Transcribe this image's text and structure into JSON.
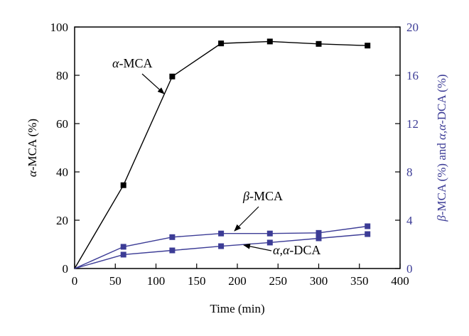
{
  "chart_data": {
    "type": "line",
    "xlabel": "Time (min)",
    "x_ticks": [
      "0",
      "50",
      "100",
      "150",
      "200",
      "250",
      "300",
      "350",
      "400"
    ],
    "xlim": [
      0,
      400
    ],
    "y_left": {
      "label_italic": "α",
      "label_rest": "-MCA (%)",
      "ylim": [
        0,
        100
      ],
      "ticks": [
        "0",
        "20",
        "40",
        "60",
        "80",
        "100"
      ],
      "color": "#000000"
    },
    "y_right": {
      "label_italic1": "β",
      "label_mid": "-MCA (%) and ",
      "label_italic2": "α,α",
      "label_end": "-DCA (%)",
      "ylim": [
        0,
        20
      ],
      "ticks": [
        "0",
        "4",
        "8",
        "12",
        "16",
        "20"
      ],
      "color": "#3c3c96"
    },
    "series": [
      {
        "axis": "left",
        "color": "#000000",
        "points": [
          [
            0,
            0
          ],
          [
            60,
            34.5
          ],
          [
            120,
            79.5
          ],
          [
            180,
            93.2
          ],
          [
            240,
            94.0
          ],
          [
            300,
            93.0
          ],
          [
            360,
            92.3
          ]
        ]
      },
      {
        "axis": "right",
        "color": "#3c3c96",
        "points": [
          [
            0,
            0
          ],
          [
            60,
            1.8
          ],
          [
            120,
            2.6
          ],
          [
            180,
            2.9
          ],
          [
            240,
            2.9
          ],
          [
            300,
            2.95
          ],
          [
            360,
            3.5
          ]
        ]
      },
      {
        "axis": "right",
        "color": "#3c3c96",
        "points": [
          [
            0,
            0
          ],
          [
            60,
            1.15
          ],
          [
            120,
            1.5
          ],
          [
            180,
            1.85
          ],
          [
            240,
            2.15
          ],
          [
            300,
            2.5
          ],
          [
            360,
            2.85
          ]
        ]
      }
    ],
    "annotations": [
      {
        "italic": "α",
        "rest": "-MCA"
      },
      {
        "italic": "β",
        "rest": "-MCA"
      },
      {
        "italic": "α,α",
        "rest": "-DCA"
      }
    ]
  }
}
